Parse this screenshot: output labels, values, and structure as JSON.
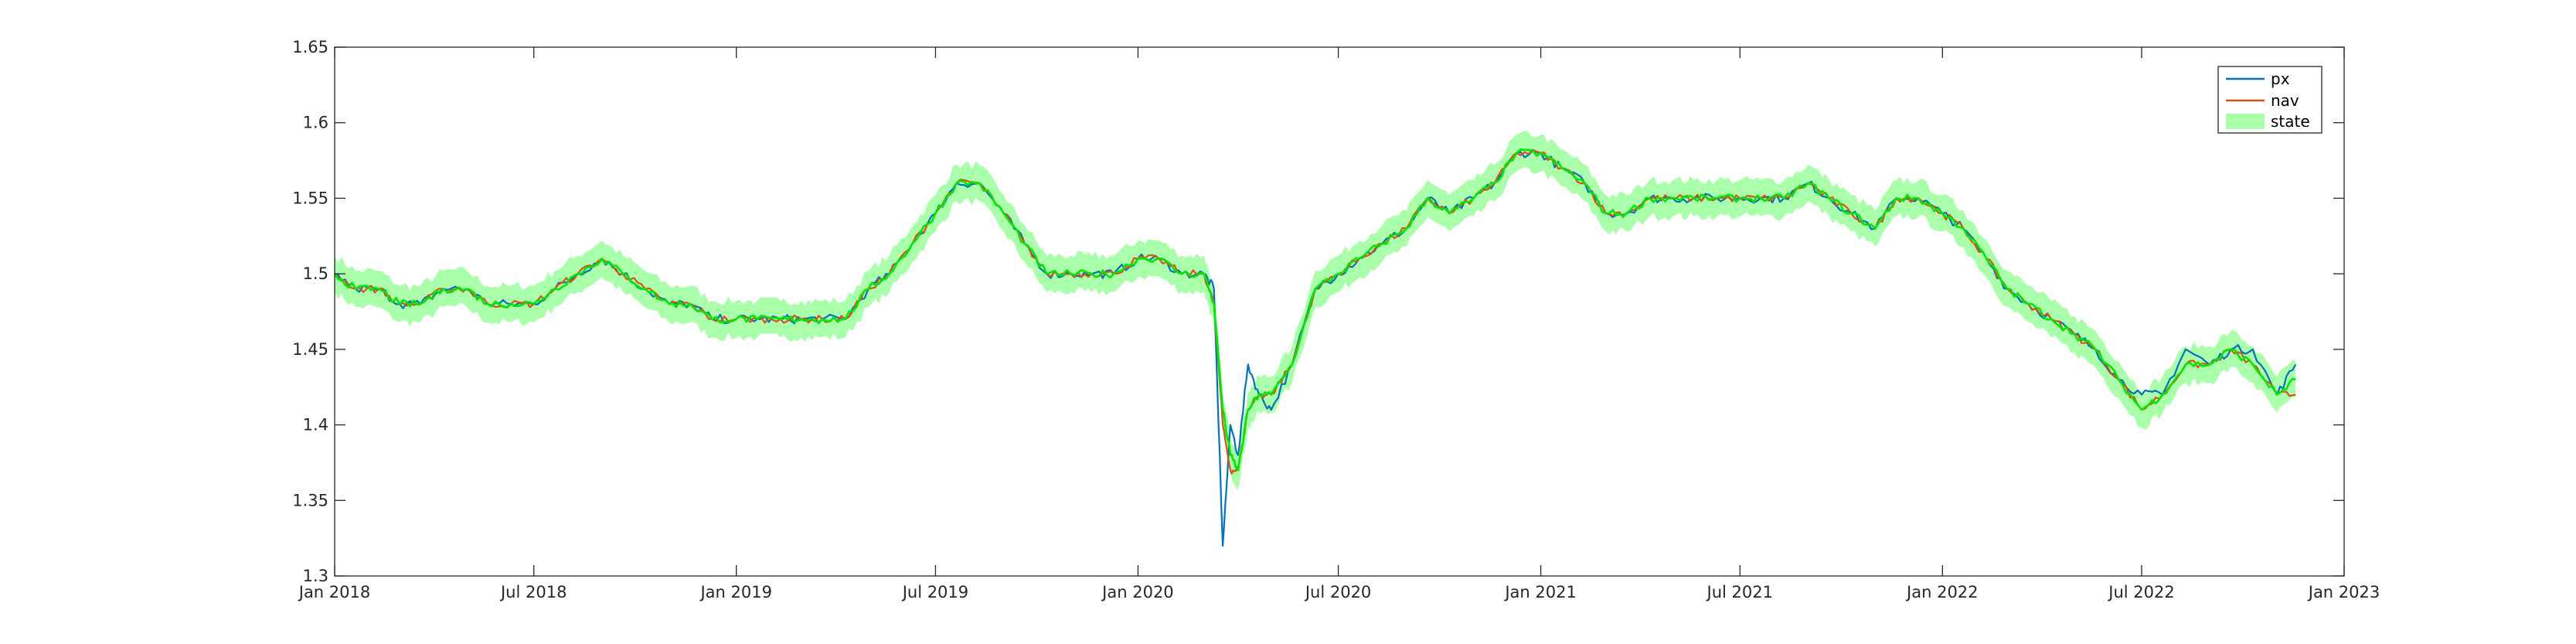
{
  "chart_data": {
    "type": "line",
    "title": "",
    "xlabel": "",
    "ylabel": "",
    "xlim": [
      "2018-01-01",
      "2023-01-01"
    ],
    "ylim": [
      1.3,
      1.65
    ],
    "x_ticks": [
      "2018-01-01",
      "2018-07-01",
      "2019-01-01",
      "2019-07-01",
      "2020-01-01",
      "2020-07-01",
      "2021-01-01",
      "2021-07-01",
      "2022-01-01",
      "2022-07-01",
      "2023-01-01"
    ],
    "x_tick_labels": [
      "Jan 2018",
      "Jul 2018",
      "Jan 2019",
      "Jul 2019",
      "Jan 2020",
      "Jul 2020",
      "Jan 2021",
      "Jul 2021",
      "Jan 2022",
      "Jul 2022",
      "Jan 2023"
    ],
    "y_ticks": [
      1.3,
      1.35,
      1.4,
      1.45,
      1.5,
      1.55,
      1.6,
      1.65
    ],
    "y_tick_labels": [
      "1.3",
      "1.35",
      "1.4",
      "1.45",
      "1.5",
      "1.55",
      "1.6",
      "1.65"
    ],
    "grid": false,
    "legend": {
      "position": "top-right",
      "entries": [
        "px",
        "nav",
        "state"
      ]
    },
    "series": [
      {
        "name": "px",
        "color": "#0072BD",
        "x": [
          "2018-01-01",
          "2018-01-20",
          "2018-02-10",
          "2018-03-01",
          "2018-03-20",
          "2018-04-10",
          "2018-05-01",
          "2018-05-20",
          "2018-06-10",
          "2018-07-01",
          "2018-07-20",
          "2018-08-10",
          "2018-09-01",
          "2018-09-20",
          "2018-10-10",
          "2018-11-01",
          "2018-11-20",
          "2018-12-10",
          "2019-01-01",
          "2019-01-20",
          "2019-02-10",
          "2019-03-01",
          "2019-03-20",
          "2019-04-10",
          "2019-05-01",
          "2019-05-20",
          "2019-06-10",
          "2019-07-01",
          "2019-07-20",
          "2019-08-10",
          "2019-09-01",
          "2019-09-20",
          "2019-10-10",
          "2019-11-01",
          "2019-11-20",
          "2019-12-10",
          "2020-01-01",
          "2020-01-20",
          "2020-02-10",
          "2020-03-01",
          "2020-03-10",
          "2020-03-18",
          "2020-03-25",
          "2020-04-01",
          "2020-04-10",
          "2020-04-20",
          "2020-05-01",
          "2020-05-20",
          "2020-06-10",
          "2020-07-01",
          "2020-07-20",
          "2020-08-10",
          "2020-09-01",
          "2020-09-20",
          "2020-10-10",
          "2020-11-01",
          "2020-11-20",
          "2020-12-10",
          "2021-01-01",
          "2021-01-20",
          "2021-02-10",
          "2021-03-01",
          "2021-03-20",
          "2021-04-10",
          "2021-05-01",
          "2021-05-20",
          "2021-06-10",
          "2021-07-01",
          "2021-07-20",
          "2021-08-10",
          "2021-09-01",
          "2021-09-20",
          "2021-10-10",
          "2021-11-01",
          "2021-11-20",
          "2021-12-10",
          "2022-01-01",
          "2022-01-20",
          "2022-02-10",
          "2022-03-01",
          "2022-03-20",
          "2022-04-10",
          "2022-05-01",
          "2022-05-20",
          "2022-06-10",
          "2022-07-01",
          "2022-07-20",
          "2022-08-10",
          "2022-09-01",
          "2022-09-20",
          "2022-10-10",
          "2022-11-01",
          "2022-11-18"
        ],
        "values": [
          1.5,
          1.49,
          1.49,
          1.48,
          1.48,
          1.49,
          1.49,
          1.48,
          1.48,
          1.48,
          1.49,
          1.5,
          1.51,
          1.5,
          1.49,
          1.48,
          1.48,
          1.47,
          1.47,
          1.47,
          1.47,
          1.47,
          1.47,
          1.47,
          1.49,
          1.5,
          1.52,
          1.54,
          1.56,
          1.56,
          1.54,
          1.52,
          1.5,
          1.5,
          1.5,
          1.5,
          1.51,
          1.51,
          1.5,
          1.5,
          1.49,
          1.32,
          1.4,
          1.38,
          1.44,
          1.42,
          1.41,
          1.44,
          1.49,
          1.5,
          1.51,
          1.52,
          1.53,
          1.55,
          1.54,
          1.55,
          1.56,
          1.58,
          1.58,
          1.57,
          1.56,
          1.54,
          1.54,
          1.55,
          1.55,
          1.55,
          1.55,
          1.55,
          1.55,
          1.55,
          1.56,
          1.55,
          1.54,
          1.53,
          1.55,
          1.55,
          1.54,
          1.53,
          1.51,
          1.49,
          1.48,
          1.47,
          1.46,
          1.45,
          1.43,
          1.42,
          1.42,
          1.45,
          1.44,
          1.45,
          1.45,
          1.42,
          1.44
        ]
      },
      {
        "name": "nav",
        "color": "#D95319",
        "x": [
          "2018-01-01",
          "2018-01-20",
          "2018-02-10",
          "2018-03-01",
          "2018-03-20",
          "2018-04-10",
          "2018-05-01",
          "2018-05-20",
          "2018-06-10",
          "2018-07-01",
          "2018-07-20",
          "2018-08-10",
          "2018-09-01",
          "2018-09-20",
          "2018-10-10",
          "2018-11-01",
          "2018-11-20",
          "2018-12-10",
          "2019-01-01",
          "2019-01-20",
          "2019-02-10",
          "2019-03-01",
          "2019-03-20",
          "2019-04-10",
          "2019-05-01",
          "2019-05-20",
          "2019-06-10",
          "2019-07-01",
          "2019-07-20",
          "2019-08-10",
          "2019-09-01",
          "2019-09-20",
          "2019-10-10",
          "2019-11-01",
          "2019-11-20",
          "2019-12-10",
          "2020-01-01",
          "2020-01-20",
          "2020-02-10",
          "2020-03-01",
          "2020-03-10",
          "2020-03-18",
          "2020-03-25",
          "2020-04-01",
          "2020-04-10",
          "2020-04-20",
          "2020-05-01",
          "2020-05-20",
          "2020-06-10",
          "2020-07-01",
          "2020-07-20",
          "2020-08-10",
          "2020-09-01",
          "2020-09-20",
          "2020-10-10",
          "2020-11-01",
          "2020-11-20",
          "2020-12-10",
          "2021-01-01",
          "2021-01-20",
          "2021-02-10",
          "2021-03-01",
          "2021-03-20",
          "2021-04-10",
          "2021-05-01",
          "2021-05-20",
          "2021-06-10",
          "2021-07-01",
          "2021-07-20",
          "2021-08-10",
          "2021-09-01",
          "2021-09-20",
          "2021-10-10",
          "2021-11-01",
          "2021-11-20",
          "2021-12-10",
          "2022-01-01",
          "2022-01-20",
          "2022-02-10",
          "2022-03-01",
          "2022-03-20",
          "2022-04-10",
          "2022-05-01",
          "2022-05-20",
          "2022-06-10",
          "2022-07-01",
          "2022-07-20",
          "2022-08-10",
          "2022-09-01",
          "2022-09-20",
          "2022-10-10",
          "2022-11-01",
          "2022-11-18"
        ],
        "values": [
          1.5,
          1.49,
          1.49,
          1.48,
          1.48,
          1.49,
          1.49,
          1.48,
          1.48,
          1.48,
          1.49,
          1.5,
          1.51,
          1.5,
          1.49,
          1.48,
          1.48,
          1.47,
          1.47,
          1.47,
          1.47,
          1.47,
          1.47,
          1.47,
          1.49,
          1.5,
          1.52,
          1.54,
          1.56,
          1.56,
          1.54,
          1.52,
          1.5,
          1.5,
          1.5,
          1.5,
          1.51,
          1.51,
          1.5,
          1.5,
          1.48,
          1.4,
          1.37,
          1.37,
          1.41,
          1.42,
          1.42,
          1.44,
          1.49,
          1.5,
          1.51,
          1.52,
          1.53,
          1.55,
          1.54,
          1.55,
          1.56,
          1.58,
          1.58,
          1.57,
          1.56,
          1.54,
          1.54,
          1.55,
          1.55,
          1.55,
          1.55,
          1.55,
          1.55,
          1.55,
          1.56,
          1.55,
          1.54,
          1.53,
          1.55,
          1.55,
          1.54,
          1.53,
          1.51,
          1.49,
          1.48,
          1.47,
          1.46,
          1.45,
          1.43,
          1.41,
          1.42,
          1.44,
          1.44,
          1.45,
          1.44,
          1.42,
          1.42
        ]
      },
      {
        "name": "state",
        "color": "#00E600",
        "band_color": "#AAFFAA",
        "band_halfwidth": 0.012,
        "x": [
          "2018-01-01",
          "2018-01-20",
          "2018-02-10",
          "2018-03-01",
          "2018-03-20",
          "2018-04-10",
          "2018-05-01",
          "2018-05-20",
          "2018-06-10",
          "2018-07-01",
          "2018-07-20",
          "2018-08-10",
          "2018-09-01",
          "2018-09-20",
          "2018-10-10",
          "2018-11-01",
          "2018-11-20",
          "2018-12-10",
          "2019-01-01",
          "2019-01-20",
          "2019-02-10",
          "2019-03-01",
          "2019-03-20",
          "2019-04-10",
          "2019-05-01",
          "2019-05-20",
          "2019-06-10",
          "2019-07-01",
          "2019-07-20",
          "2019-08-10",
          "2019-09-01",
          "2019-09-20",
          "2019-10-10",
          "2019-11-01",
          "2019-11-20",
          "2019-12-10",
          "2020-01-01",
          "2020-01-20",
          "2020-02-10",
          "2020-03-01",
          "2020-03-10",
          "2020-03-18",
          "2020-03-25",
          "2020-04-01",
          "2020-04-10",
          "2020-04-20",
          "2020-05-01",
          "2020-05-20",
          "2020-06-10",
          "2020-07-01",
          "2020-07-20",
          "2020-08-10",
          "2020-09-01",
          "2020-09-20",
          "2020-10-10",
          "2020-11-01",
          "2020-11-20",
          "2020-12-10",
          "2021-01-01",
          "2021-01-20",
          "2021-02-10",
          "2021-03-01",
          "2021-03-20",
          "2021-04-10",
          "2021-05-01",
          "2021-05-20",
          "2021-06-10",
          "2021-07-01",
          "2021-07-20",
          "2021-08-10",
          "2021-09-01",
          "2021-09-20",
          "2021-10-10",
          "2021-11-01",
          "2021-11-20",
          "2021-12-10",
          "2022-01-01",
          "2022-01-20",
          "2022-02-10",
          "2022-03-01",
          "2022-03-20",
          "2022-04-10",
          "2022-05-01",
          "2022-05-20",
          "2022-06-10",
          "2022-07-01",
          "2022-07-20",
          "2022-08-10",
          "2022-09-01",
          "2022-09-20",
          "2022-10-10",
          "2022-11-01",
          "2022-11-18"
        ],
        "values": [
          1.5,
          1.49,
          1.49,
          1.48,
          1.48,
          1.49,
          1.49,
          1.48,
          1.48,
          1.48,
          1.49,
          1.5,
          1.51,
          1.5,
          1.49,
          1.48,
          1.48,
          1.47,
          1.47,
          1.47,
          1.47,
          1.47,
          1.47,
          1.47,
          1.49,
          1.5,
          1.52,
          1.54,
          1.56,
          1.56,
          1.54,
          1.52,
          1.5,
          1.5,
          1.5,
          1.5,
          1.51,
          1.51,
          1.5,
          1.5,
          1.48,
          1.41,
          1.38,
          1.37,
          1.41,
          1.42,
          1.42,
          1.44,
          1.49,
          1.5,
          1.51,
          1.52,
          1.53,
          1.55,
          1.54,
          1.55,
          1.56,
          1.58,
          1.58,
          1.57,
          1.56,
          1.54,
          1.54,
          1.55,
          1.55,
          1.55,
          1.55,
          1.55,
          1.55,
          1.55,
          1.56,
          1.55,
          1.54,
          1.53,
          1.55,
          1.55,
          1.54,
          1.53,
          1.51,
          1.49,
          1.48,
          1.47,
          1.46,
          1.45,
          1.43,
          1.41,
          1.42,
          1.44,
          1.44,
          1.45,
          1.44,
          1.42,
          1.43
        ]
      }
    ]
  }
}
